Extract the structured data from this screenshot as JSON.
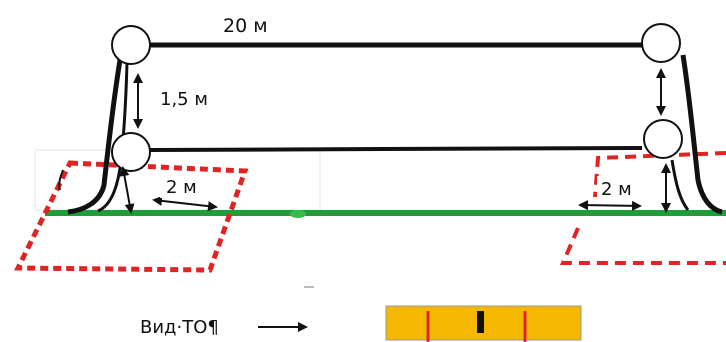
{
  "labels": {
    "span_length": "20 м",
    "vertical_gap": "1,5 м",
    "offset_left": "2 м",
    "offset_right": "2 м",
    "view_label": "Вид·ТО¶"
  },
  "colors": {
    "ground": "#1e9e3a",
    "ground_marker": "#2fbf4a",
    "line": "#111111",
    "zone_border": "#e02424",
    "legend_fill": "#f5b800",
    "legend_red_mark": "#e02424",
    "legend_black_mark": "#111111"
  },
  "icons": {
    "pulley": "circle",
    "view_arrow": "right-arrow",
    "dimension_arrow": "double-headed-arrow"
  }
}
